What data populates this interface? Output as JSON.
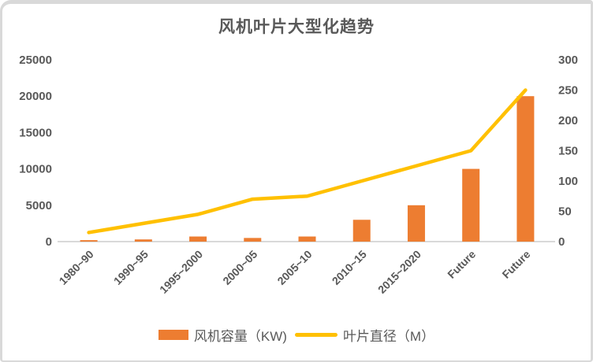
{
  "title": "风机叶片大型化趋势",
  "colors": {
    "bar": "#ED7D31",
    "line": "#FFC000",
    "axis": "#D9D9D9",
    "text": "#595959",
    "frame": "#D9D9D9"
  },
  "chart_data": {
    "type": "combo-bar-line",
    "title": "风机叶片大型化趋势",
    "categories": [
      "1980~90",
      "1990~95",
      "1995~2000",
      "2000~05",
      "2005~10",
      "2010~15",
      "2015~2020",
      "Future",
      "Future"
    ],
    "series": [
      {
        "name": "风机容量（KW)",
        "type": "bar",
        "axis": "left",
        "color": "#ED7D31",
        "values": [
          200,
          300,
          700,
          500,
          700,
          3000,
          5000,
          10000,
          20000
        ]
      },
      {
        "name": "叶片直径（M）",
        "type": "line",
        "axis": "right",
        "color": "#FFC000",
        "values": [
          15,
          30,
          45,
          70,
          75,
          100,
          125,
          150,
          250
        ]
      }
    ],
    "left_axis": {
      "min": 0,
      "max": 25000,
      "step": 5000,
      "ticks": [
        0,
        5000,
        10000,
        15000,
        20000,
        25000
      ]
    },
    "right_axis": {
      "min": 0,
      "max": 300,
      "step": 50,
      "ticks": [
        0,
        50,
        100,
        150,
        200,
        250,
        300
      ]
    },
    "grid": false,
    "legend_position": "bottom",
    "x_label_rotation": -45
  }
}
